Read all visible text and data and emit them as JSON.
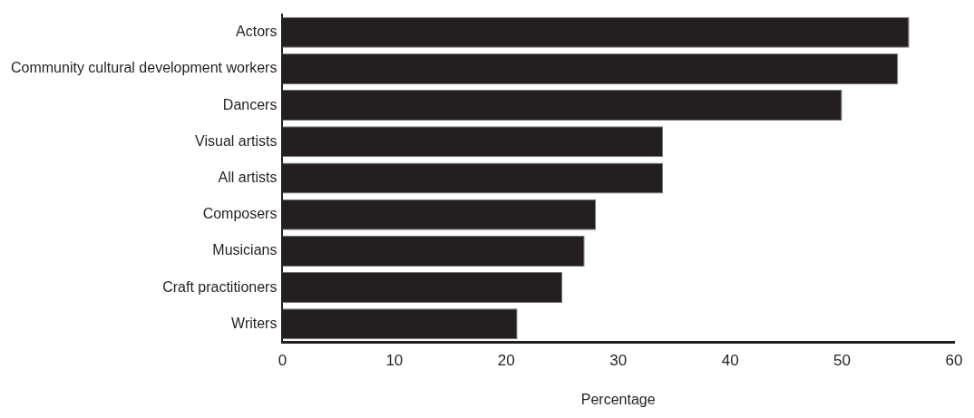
{
  "chart_data": {
    "type": "bar",
    "orientation": "horizontal",
    "xlabel": "Percentage",
    "categories": [
      "Actors",
      "Community cultural development workers",
      "Dancers",
      "Visual artists",
      "All artists",
      "Composers",
      "Musicians",
      "Craft practitioners",
      "Writers"
    ],
    "values": [
      56,
      55,
      50,
      34,
      34,
      28,
      27,
      25,
      21
    ],
    "color": "#231f20",
    "xlim": [
      0,
      60
    ],
    "xticks": [
      0,
      10,
      20,
      30,
      40,
      50,
      60
    ],
    "grid": false,
    "legend": false
  }
}
